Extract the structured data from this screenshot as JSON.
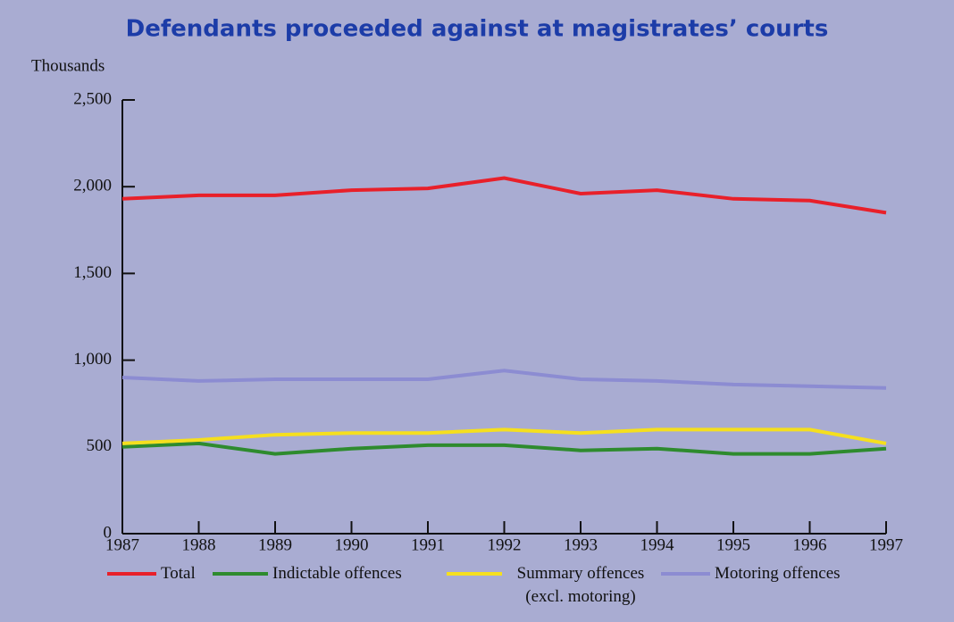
{
  "chart_data": {
    "type": "line",
    "title": "Defendants proceeded against at magistrates’ courts",
    "y_label": "Thousands",
    "x": [
      1987,
      1988,
      1989,
      1990,
      1991,
      1992,
      1993,
      1994,
      1995,
      1996,
      1997
    ],
    "xlim": [
      1987,
      1997
    ],
    "xticks": [
      1987,
      1988,
      1989,
      1990,
      1991,
      1992,
      1993,
      1994,
      1995,
      1996,
      1997
    ],
    "ylim": [
      0,
      2500
    ],
    "yticks": [
      0,
      500,
      {
        "value": 1000,
        "label": "1,000"
      },
      {
        "value": 1500,
        "label": "1,500"
      },
      {
        "value": 2000,
        "label": "2,000"
      },
      {
        "value": 2500,
        "label": "2,500"
      }
    ],
    "series": [
      {
        "name": "Total",
        "color": "#e8202a",
        "values": [
          1930,
          1950,
          1950,
          1980,
          1990,
          2050,
          1960,
          1980,
          1930,
          1920,
          1850
        ]
      },
      {
        "name": "Indictable offences",
        "color": "#2e8b2e",
        "values": [
          500,
          520,
          460,
          490,
          510,
          510,
          480,
          490,
          460,
          460,
          490
        ]
      },
      {
        "name": "Summary offences (excl. motoring)",
        "color": "#f5df1e",
        "values": [
          520,
          540,
          570,
          580,
          580,
          600,
          580,
          600,
          600,
          600,
          520
        ]
      },
      {
        "name": "Motoring offences",
        "color": "#8c8cd2",
        "values": [
          900,
          880,
          890,
          890,
          890,
          940,
          890,
          880,
          860,
          850,
          840
        ]
      }
    ]
  }
}
